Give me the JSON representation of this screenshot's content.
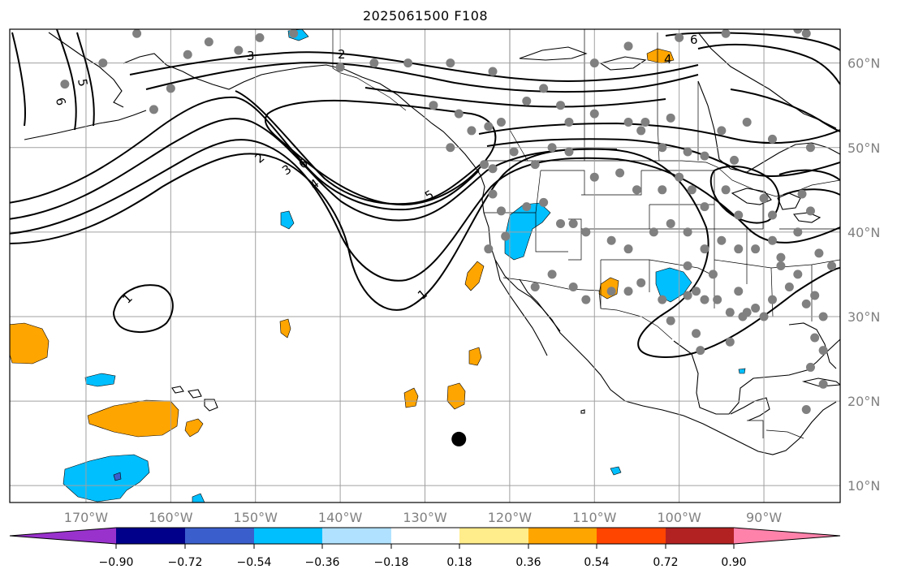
{
  "title": "2025061500 F108",
  "map": {
    "lon_range": [
      -179,
      -81
    ],
    "lat_range": [
      8,
      64
    ],
    "lon_ticks": [
      {
        "value": -170,
        "label": "170°W"
      },
      {
        "value": -160,
        "label": "160°W"
      },
      {
        "value": -150,
        "label": "150°W"
      },
      {
        "value": -140,
        "label": "140°W"
      },
      {
        "value": -130,
        "label": "130°W"
      },
      {
        "value": -120,
        "label": "120°W"
      },
      {
        "value": -110,
        "label": "110°W"
      },
      {
        "value": -100,
        "label": "100°W"
      },
      {
        "value": -90,
        "label": "90°W"
      }
    ],
    "lat_ticks": [
      {
        "value": 10,
        "label": "10°N"
      },
      {
        "value": 20,
        "label": "20°N"
      },
      {
        "value": 30,
        "label": "30°N"
      },
      {
        "value": 40,
        "label": "40°N"
      },
      {
        "value": 50,
        "label": "50°N"
      },
      {
        "value": 60,
        "label": "60°N"
      }
    ],
    "grid": true,
    "contour_labels": [
      "1",
      "1",
      "2",
      "2",
      "3",
      "3",
      "4",
      "4",
      "5",
      "5",
      "6",
      "6",
      "6"
    ],
    "station_marker": {
      "lon": -126,
      "lat": 15.5,
      "color": "#000000"
    },
    "station_dot_color": "#808080",
    "stations": [
      [
        -164,
        63.5
      ],
      [
        -158,
        61
      ],
      [
        -155.5,
        62.5
      ],
      [
        -152,
        61.5
      ],
      [
        -149.5,
        63
      ],
      [
        -145.5,
        63.5
      ],
      [
        -140,
        59.5
      ],
      [
        -136,
        60
      ],
      [
        -132,
        60
      ],
      [
        -127,
        60
      ],
      [
        -122,
        59
      ],
      [
        -116,
        57
      ],
      [
        -110,
        60
      ],
      [
        -106,
        62
      ],
      [
        -100,
        63
      ],
      [
        -94.5,
        63.5
      ],
      [
        -86,
        64
      ],
      [
        -85,
        63.5
      ],
      [
        -162,
        54.5
      ],
      [
        -160,
        57
      ],
      [
        -172.5,
        57.5
      ],
      [
        -168,
        60
      ],
      [
        -129,
        55
      ],
      [
        -126,
        54
      ],
      [
        -124.5,
        52
      ],
      [
        -122.5,
        52.5
      ],
      [
        -121,
        53
      ],
      [
        -118,
        55.5
      ],
      [
        -114,
        55
      ],
      [
        -113,
        53
      ],
      [
        -110,
        54
      ],
      [
        -106,
        53
      ],
      [
        -104,
        53
      ],
      [
        -104.5,
        52
      ],
      [
        -101,
        53.5
      ],
      [
        -99,
        49.5
      ],
      [
        -97,
        49
      ],
      [
        -102,
        50
      ],
      [
        -95,
        52
      ],
      [
        -93.5,
        48.5
      ],
      [
        -92,
        53
      ],
      [
        -89,
        51
      ],
      [
        -84.5,
        50
      ],
      [
        -127,
        50
      ],
      [
        -123,
        48
      ],
      [
        -122,
        47.5
      ],
      [
        -119.5,
        49.5
      ],
      [
        -117,
        48
      ],
      [
        -115,
        50
      ],
      [
        -113,
        49.5
      ],
      [
        -110,
        46.5
      ],
      [
        -107,
        47
      ],
      [
        -105,
        45
      ],
      [
        -102,
        45
      ],
      [
        -100,
        46.5
      ],
      [
        -98.5,
        45
      ],
      [
        -97,
        43
      ],
      [
        -94.5,
        45
      ],
      [
        -93,
        42
      ],
      [
        -90,
        44
      ],
      [
        -89,
        42
      ],
      [
        -85.5,
        44.5
      ],
      [
        -84.5,
        42.5
      ],
      [
        -86,
        40
      ],
      [
        -88,
        37
      ],
      [
        -89,
        39
      ],
      [
        -91,
        38
      ],
      [
        -93,
        38
      ],
      [
        -95,
        39
      ],
      [
        -97,
        38
      ],
      [
        -99,
        40
      ],
      [
        -101,
        41
      ],
      [
        -103,
        40
      ],
      [
        -106,
        38
      ],
      [
        -108,
        39
      ],
      [
        -111,
        40
      ],
      [
        -112.5,
        41
      ],
      [
        -114,
        41
      ],
      [
        -116,
        43.5
      ],
      [
        -118,
        43
      ],
      [
        -121,
        42.5
      ],
      [
        -122,
        44.5
      ],
      [
        -122.5,
        38
      ],
      [
        -120.5,
        39.5
      ],
      [
        -117,
        33.5
      ],
      [
        -115,
        35
      ],
      [
        -112.5,
        33.5
      ],
      [
        -111,
        32
      ],
      [
        -108,
        33
      ],
      [
        -106,
        33
      ],
      [
        -104.5,
        34
      ],
      [
        -102,
        32
      ],
      [
        -99,
        32.5
      ],
      [
        -97,
        32
      ],
      [
        -95.5,
        32
      ],
      [
        -93,
        33
      ],
      [
        -94,
        30.5
      ],
      [
        -92.5,
        30
      ],
      [
        -91,
        31
      ],
      [
        -89,
        32
      ],
      [
        -87,
        33.5
      ],
      [
        -85,
        31.5
      ],
      [
        -84,
        32.5
      ],
      [
        -83,
        30
      ],
      [
        -82,
        36
      ],
      [
        -83.5,
        37.5
      ],
      [
        -86,
        35
      ],
      [
        -88,
        36
      ],
      [
        -101,
        29.5
      ],
      [
        -98,
        28
      ],
      [
        -97.5,
        26
      ],
      [
        -94,
        27
      ],
      [
        -84,
        27.5
      ],
      [
        -83,
        26
      ],
      [
        -84.5,
        24
      ],
      [
        -83,
        22
      ],
      [
        -85,
        19
      ],
      [
        -98,
        33
      ],
      [
        -96,
        35
      ],
      [
        -99,
        36
      ],
      [
        -92,
        30.5
      ],
      [
        -90,
        30
      ]
    ]
  }
}
